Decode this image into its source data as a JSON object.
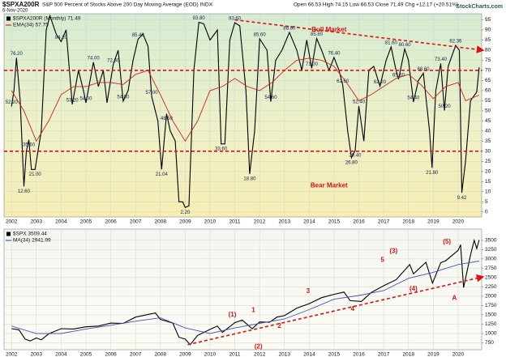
{
  "source": "StockCharts.com",
  "chart_data": [
    {
      "type": "line",
      "title": "$SPXA200R",
      "subtitle": "S&P 500 Percent of Stocks Above 200 Day Moving Average (EOD) INDX",
      "date": "6-Nov-2020",
      "quote": "Open 66.53 High 74.15 Low 66.53 Close 71.49 Chg +12.17 (+20.51%)",
      "xlim": [
        2001.7,
        2020.95
      ],
      "xticks": [
        2002,
        2003,
        2004,
        2005,
        2006,
        2007,
        2008,
        2009,
        2010,
        2011,
        2012,
        2013,
        2014,
        2015,
        2016,
        2017,
        2018,
        2019,
        2020
      ],
      "ylim": [
        -2.5,
        98
      ],
      "yticks": [
        0,
        5,
        10,
        15,
        20,
        25,
        30,
        35,
        40,
        45,
        50,
        55,
        60,
        65,
        70,
        75,
        80,
        85,
        90,
        95
      ],
      "grid": true,
      "series": [
        {
          "name": "$SPXA200R (Monthly) 71.49",
          "color": "#000000",
          "x": [
            2002.0,
            2002.1,
            2002.2,
            2002.35,
            2002.5,
            2002.6,
            2002.7,
            2002.8,
            2002.95,
            2003.2,
            2003.4,
            2003.55,
            2003.8,
            2004.0,
            2004.2,
            2004.45,
            2004.7,
            2004.9,
            2005.0,
            2005.3,
            2005.5,
            2005.7,
            2005.85,
            2006.1,
            2006.3,
            2006.5,
            2006.7,
            2006.9,
            2007.1,
            2007.3,
            2007.5,
            2007.65,
            2007.9,
            2008.05,
            2008.25,
            2008.4,
            2008.6,
            2008.75,
            2008.9,
            2009.0,
            2009.15,
            2009.35,
            2009.55,
            2009.75,
            2010.0,
            2010.3,
            2010.45,
            2010.6,
            2010.8,
            2011.0,
            2011.2,
            2011.45,
            2011.6,
            2011.8,
            2012.0,
            2012.3,
            2012.45,
            2012.65,
            2012.9,
            2013.2,
            2013.5,
            2013.7,
            2013.9,
            2014.1,
            2014.3,
            2014.5,
            2014.8,
            2015.0,
            2015.2,
            2015.35,
            2015.55,
            2015.7,
            2015.85,
            2016.0,
            2016.2,
            2016.4,
            2016.6,
            2016.85,
            2017.1,
            2017.3,
            2017.5,
            2017.6,
            2017.85,
            2018.0,
            2018.2,
            2018.4,
            2018.6,
            2018.85,
            2018.95,
            2019.1,
            2019.3,
            2019.45,
            2019.6,
            2019.9,
            2020.05,
            2020.15,
            2020.3,
            2020.5,
            2020.75,
            2020.85
          ],
          "values": [
            52.2,
            60,
            76.2,
            55,
            12.6,
            30,
            35.6,
            21,
            21,
            40,
            90,
            97,
            88,
            84.2,
            90,
            53.2,
            70,
            60,
            54,
            74,
            62,
            70,
            54,
            72.8,
            80,
            54.8,
            60,
            75,
            85.4,
            88,
            82,
            57,
            45,
            21.04,
            48.5,
            40,
            35,
            5,
            5,
            2.2,
            3,
            70,
            93.8,
            93,
            85,
            90,
            33.6,
            33.6,
            85,
            93.6,
            92,
            60,
            18.8,
            40,
            85.6,
            80,
            54.6,
            75,
            80,
            88.8,
            80,
            70,
            85,
            71,
            85.8,
            80,
            70,
            76.4,
            70,
            62.6,
            40,
            26.8,
            30.4,
            52.4,
            35,
            70,
            72,
            62.2,
            75,
            81.6,
            70,
            65.6,
            80.6,
            75,
            54.4,
            65,
            68.6,
            40,
            21.8,
            60,
            73.4,
            50.2,
            72,
            82.36,
            80,
            9.42,
            25,
            55,
            59.3,
            71.49
          ]
        },
        {
          "name": "EMA(34) 57.75",
          "color": "#cc2222",
          "x": [
            2002.0,
            2002.5,
            2003.0,
            2003.5,
            2004.0,
            2004.5,
            2005.0,
            2005.5,
            2006.0,
            2006.5,
            2007.0,
            2007.5,
            2008.0,
            2008.5,
            2009.0,
            2009.5,
            2010.0,
            2010.5,
            2011.0,
            2011.5,
            2012.0,
            2012.5,
            2013.0,
            2013.5,
            2014.0,
            2014.5,
            2015.0,
            2015.5,
            2016.0,
            2016.5,
            2017.0,
            2017.5,
            2018.0,
            2018.5,
            2019.0,
            2019.5,
            2020.0,
            2020.3,
            2020.85
          ],
          "values": [
            60,
            50,
            35,
            45,
            58,
            62,
            62,
            64,
            64,
            63,
            68,
            70,
            58,
            45,
            35,
            45,
            60,
            62,
            66,
            62,
            60,
            64,
            70,
            75,
            76,
            75,
            72,
            64,
            55,
            58,
            62,
            66,
            68,
            63,
            56,
            62,
            64,
            55,
            57.75
          ]
        }
      ],
      "labels": {
        "x": [
          2002.0,
          2002.2,
          2002.5,
          2002.7,
          2002.95,
          2004.0,
          2004.45,
          2005.0,
          2005.3,
          2006.1,
          2006.5,
          2007.1,
          2007.65,
          2008.05,
          2008.25,
          2009.0,
          2009.55,
          2010.45,
          2011.0,
          2011.6,
          2012.0,
          2012.45,
          2013.2,
          2014.1,
          2014.3,
          2015.0,
          2015.35,
          2015.7,
          2015.85,
          2016.0,
          2016.85,
          2017.3,
          2017.6,
          2017.85,
          2018.2,
          2018.6,
          2018.95,
          2019.3,
          2019.45,
          2019.9,
          2020.15
        ],
        "values": [
          52.2,
          76.2,
          12.6,
          35.6,
          21,
          84.2,
          53.2,
          54,
          74,
          72.8,
          54.8,
          85.4,
          57,
          21.04,
          48.5,
          2.2,
          93.8,
          33.6,
          93.6,
          18.8,
          85.6,
          54.6,
          88.8,
          71,
          85.8,
          76.4,
          62.6,
          26.8,
          30.4,
          52.4,
          62.2,
          81.6,
          65.6,
          80.6,
          54.4,
          68.6,
          21.8,
          73.4,
          50.2,
          82.36,
          9.42
        ],
        "value_labels": [
          "52.20",
          "76.20",
          "12.60",
          "35.60",
          "21.00",
          "84.20",
          "53.20",
          "54.00",
          "74.00",
          "72.80",
          "54.80",
          "85.40",
          "57.00",
          "21.04",
          "48.50",
          "2.20",
          "93.80",
          "33.60",
          "93.60",
          "18.80",
          "85.60",
          "54.60",
          "88.80",
          "71.00",
          "85.80",
          "76.40",
          "62.60",
          "26.80",
          "30.40",
          "52.40",
          "62.20",
          "81.60",
          "65.60",
          "80.60",
          "54.40",
          "68.60",
          "21.80",
          "73.40",
          "50.20",
          "82.36",
          "9.42"
        ]
      },
      "hlines": [
        70,
        30
      ],
      "trendline": {
        "x": [
          2011.0,
          2021.0
        ],
        "values": [
          95,
          80
        ]
      },
      "annotations": [
        "Bull Market",
        "Bear Market"
      ]
    },
    {
      "type": "line",
      "xlim": [
        2001.7,
        2020.95
      ],
      "xticks": [
        2002,
        2003,
        2004,
        2005,
        2006,
        2007,
        2008,
        2009,
        2010,
        2011,
        2012,
        2013,
        2014,
        2015,
        2016,
        2017,
        2018,
        2019,
        2020
      ],
      "ylim": [
        565,
        3800
      ],
      "yticks": [
        750,
        1000,
        1250,
        1500,
        1750,
        2000,
        2250,
        2500,
        2750,
        3000,
        3250,
        3500
      ],
      "grid": true,
      "series": [
        {
          "name": "$SPX 3509.44",
          "color": "#000000",
          "x": [
            2002.0,
            2002.3,
            2002.55,
            2002.75,
            2003.0,
            2003.2,
            2003.5,
            2004.0,
            2004.5,
            2005.0,
            2005.5,
            2006.0,
            2006.5,
            2007.0,
            2007.8,
            2008.0,
            2008.5,
            2008.75,
            2009.0,
            2009.2,
            2009.5,
            2010.0,
            2010.3,
            2010.5,
            2011.0,
            2011.3,
            2011.7,
            2012.0,
            2012.4,
            2012.7,
            2013.0,
            2013.5,
            2014.0,
            2014.5,
            2015.0,
            2015.4,
            2015.65,
            2016.1,
            2016.5,
            2017.0,
            2017.5,
            2018.05,
            2018.2,
            2018.7,
            2018.97,
            2019.3,
            2019.5,
            2020.0,
            2020.1,
            2020.22,
            2020.5,
            2020.65,
            2020.75,
            2020.85
          ],
          "values": [
            1130,
            1100,
            850,
            800,
            880,
            830,
            990,
            1130,
            1120,
            1180,
            1200,
            1280,
            1270,
            1440,
            1550,
            1380,
            1280,
            900,
            850,
            700,
            950,
            1110,
            1200,
            1030,
            1290,
            1360,
            1130,
            1310,
            1300,
            1440,
            1480,
            1680,
            1800,
            1960,
            2050,
            2110,
            1880,
            1860,
            2100,
            2280,
            2440,
            2850,
            2600,
            2910,
            2350,
            2900,
            2950,
            3230,
            3380,
            2230,
            3100,
            3500,
            3280,
            3509.44
          ]
        },
        {
          "name": "MA(34) 2941.99",
          "color": "#4455bb",
          "x": [
            2002,
            2003,
            2004,
            2005,
            2006,
            2007,
            2008,
            2009,
            2010,
            2011,
            2012,
            2013,
            2014,
            2015,
            2016,
            2017,
            2018,
            2019,
            2020,
            2020.85
          ],
          "values": [
            1200,
            1000,
            1000,
            1120,
            1220,
            1330,
            1420,
            1150,
            1000,
            1150,
            1270,
            1390,
            1640,
            1920,
            2020,
            2150,
            2480,
            2640,
            2850,
            2941.99
          ]
        }
      ],
      "trendline": {
        "x": [
          2009.1,
          2021.0
        ],
        "values": [
          700,
          2520
        ]
      },
      "annotations": [
        "(1)",
        "1",
        "2",
        "(2)",
        "3",
        "4",
        "(3)",
        "5",
        "(4)",
        "(5)",
        "A"
      ]
    }
  ]
}
